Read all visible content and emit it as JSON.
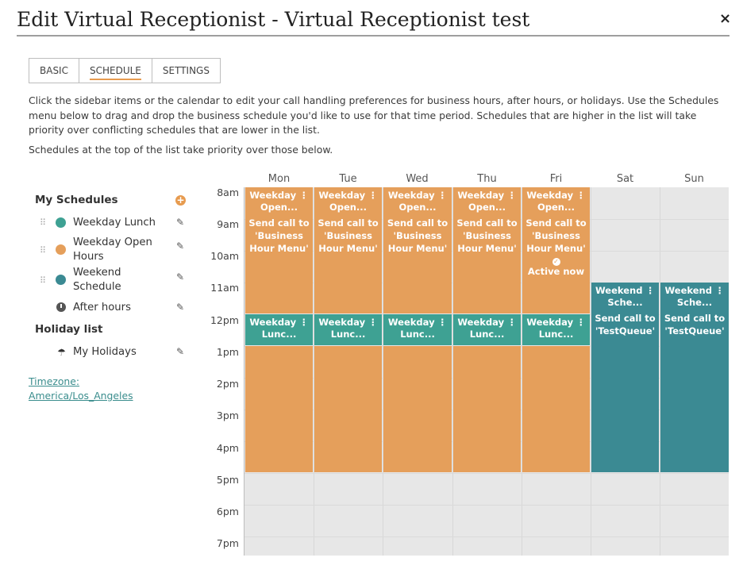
{
  "dialog": {
    "title": "Edit Virtual Receptionist - Virtual Receptionist test",
    "close_label": "×"
  },
  "tabs": [
    {
      "label": "BASIC"
    },
    {
      "label": "SCHEDULE"
    },
    {
      "label": "SETTINGS"
    }
  ],
  "active_tab": "SCHEDULE",
  "description": "Click the sidebar items or the calendar to edit your call handling preferences for business hours, after hours, or holidays. Use the Schedules menu below to drag and drop the business schedule you'd like to use for that time period. Schedules that are higher in the list will take priority over conflicting schedules that are lower in the list.",
  "priority_note": "Schedules at the top of the list take priority over those below.",
  "sidebar": {
    "my_schedules_heading": "My Schedules",
    "schedules": [
      {
        "label": "Weekday Lunch",
        "color": "#3ea193"
      },
      {
        "label": "Weekday Open Hours",
        "color": "#e59f5b"
      },
      {
        "label": "Weekend Schedule",
        "color": "#3b8a93"
      }
    ],
    "after_hours_label": "After hours",
    "holiday_heading": "Holiday list",
    "holiday_label": "My Holidays",
    "timezone_label": "Timezone:",
    "timezone_value": "America/Los_Angeles"
  },
  "calendar": {
    "days": [
      "Mon",
      "Tue",
      "Wed",
      "Thu",
      "Fri",
      "Sat",
      "Sun"
    ],
    "hours": [
      "8am",
      "9am",
      "10am",
      "11am",
      "12pm",
      "1pm",
      "2pm",
      "3pm",
      "4pm",
      "5pm",
      "6pm",
      "7pm"
    ],
    "open_title": "Weekday ⋮ Open...",
    "open_desc": "Send call to 'Business Hour Menu'",
    "lunch_title": "Weekday ⋮ Lunc...",
    "weekend_title": "Weekend ⋮ Sche...",
    "weekend_desc": "Send call to 'TestQueue'",
    "active_now": "Active now"
  }
}
